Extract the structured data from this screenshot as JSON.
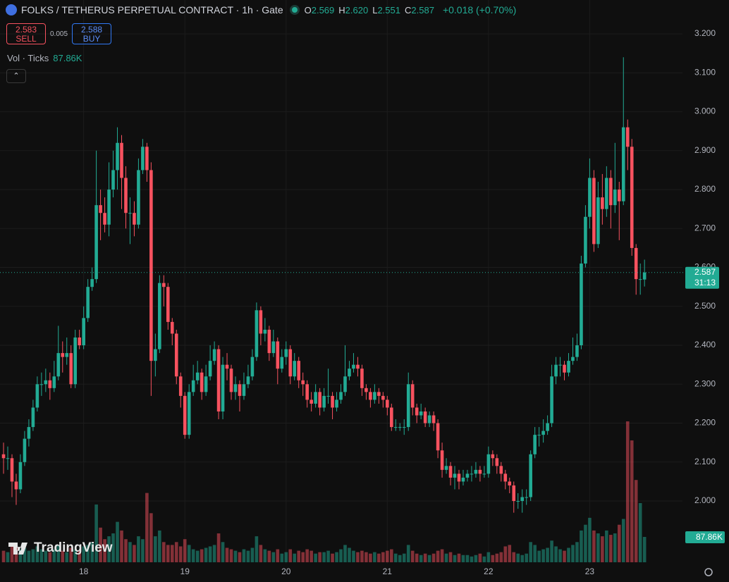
{
  "chart_data": {
    "type": "candlestick",
    "title": "FOLKS / TETHERUS PERPETUAL CONTRACT · 1h · Gate",
    "ohlc_header": [
      {
        "label": "O",
        "value": "2.569"
      },
      {
        "label": "H",
        "value": "2.620"
      },
      {
        "label": "L",
        "value": "2.551"
      },
      {
        "label": "C",
        "value": "2.587"
      }
    ],
    "change": "+0.018 (+0.70%)",
    "sell": {
      "price": "2.583",
      "label": "SELL"
    },
    "spread": "0.005",
    "buy": {
      "price": "2.588",
      "label": "BUY"
    },
    "volume_title": "Vol · Ticks",
    "volume_last_label": "87.86K",
    "last_price_label": "2.587",
    "countdown": "31:13",
    "logo": "TradingView",
    "up_color": "#22ab94",
    "down_color": "#f7525f",
    "grid": true,
    "ylim": [
      1.839,
      3.287
    ],
    "yticks": [
      {
        "value": 2,
        "label": "2.000"
      },
      {
        "value": 2.1,
        "label": "2.100"
      },
      {
        "value": 2.2,
        "label": "2.200"
      },
      {
        "value": 2.3,
        "label": "2.300"
      },
      {
        "value": 2.4,
        "label": "2.400"
      },
      {
        "value": 2.5,
        "label": "2.500"
      },
      {
        "value": 2.6,
        "label": "2.600"
      },
      {
        "value": 2.7,
        "label": "2.700"
      },
      {
        "value": 2.8,
        "label": "2.800"
      },
      {
        "value": 2.9,
        "label": "2.900"
      },
      {
        "value": 3,
        "label": "3.000"
      },
      {
        "value": 3.1,
        "label": "3.100"
      },
      {
        "value": 3.2,
        "label": "3.200"
      }
    ],
    "xlim": [
      -0.84,
      161
    ],
    "xticks": [
      {
        "value": 19,
        "label": "18"
      },
      {
        "value": 43,
        "label": "19"
      },
      {
        "value": 67,
        "label": "20"
      },
      {
        "value": 91,
        "label": "21"
      },
      {
        "value": 115,
        "label": "22"
      },
      {
        "value": 139,
        "label": "23"
      }
    ],
    "open": [
      2.12,
      2.11,
      2.11,
      2.05,
      2.03,
      2.1,
      2.16,
      2.19,
      2.24,
      2.3,
      2.3,
      2.31,
      2.29,
      2.32,
      2.38,
      2.37,
      2.38,
      2.3,
      2.42,
      2.4,
      2.47,
      2.55,
      2.57,
      2.76,
      2.74,
      2.71,
      2.8,
      2.85,
      2.92,
      2.83,
      2.74,
      2.74,
      2.71,
      2.85,
      2.91,
      2.85,
      2.36,
      2.39,
      2.56,
      2.55,
      2.46,
      2.43,
      2.32,
      2.27,
      2.17,
      2.28,
      2.31,
      2.33,
      2.28,
      2.32,
      2.36,
      2.39,
      2.23,
      2.35,
      2.34,
      2.28,
      2.3,
      2.27,
      2.3,
      2.32,
      2.37,
      2.49,
      2.43,
      2.44,
      2.38,
      2.41,
      2.34,
      2.37,
      2.39,
      2.32,
      2.36,
      2.31,
      2.3,
      2.26,
      2.25,
      2.28,
      2.24,
      2.27,
      2.27,
      2.24,
      2.26,
      2.28,
      2.32,
      2.34,
      2.35,
      2.34,
      2.29,
      2.28,
      2.26,
      2.28,
      2.27,
      2.26,
      2.24,
      2.19,
      2.19,
      2.19,
      2.19,
      2.3,
      2.24,
      2.22,
      2.23,
      2.2,
      2.22,
      2.2,
      2.13,
      2.08,
      2.09,
      2.06,
      2.07,
      2.05,
      2.06,
      2.07,
      2.07,
      2.08,
      2.07,
      2.07,
      2.12,
      2.11,
      2.09,
      2.07,
      2.05,
      2.04,
      2.0,
      2.0,
      2.01,
      2.01,
      2.12,
      2.17,
      2.17,
      2.18,
      2.2,
      2.32,
      2.35,
      2.35,
      2.33,
      2.36,
      2.37,
      2.4,
      2.61,
      2.73,
      2.83,
      2.66,
      2.78,
      2.75,
      2.83,
      2.76,
      2.8,
      2.77,
      2.96,
      2.91,
      2.65,
      2.57,
      2.569
    ],
    "high": [
      2.15,
      2.14,
      2.12,
      2.07,
      2.12,
      2.18,
      2.21,
      2.26,
      2.32,
      2.33,
      2.34,
      2.33,
      2.36,
      2.45,
      2.41,
      2.42,
      2.4,
      2.44,
      2.44,
      2.5,
      2.57,
      2.6,
      2.9,
      2.8,
      2.78,
      2.87,
      2.9,
      2.96,
      2.94,
      2.86,
      2.78,
      2.77,
      2.88,
      2.93,
      2.92,
      2.87,
      2.43,
      2.58,
      2.58,
      2.56,
      2.47,
      2.44,
      2.33,
      2.28,
      2.3,
      2.35,
      2.36,
      2.34,
      2.35,
      2.4,
      2.41,
      2.4,
      2.37,
      2.38,
      2.35,
      2.32,
      2.31,
      2.33,
      2.35,
      2.39,
      2.51,
      2.5,
      2.47,
      2.45,
      2.44,
      2.42,
      2.39,
      2.41,
      2.4,
      2.38,
      2.37,
      2.33,
      2.31,
      2.28,
      2.3,
      2.29,
      2.29,
      2.34,
      2.28,
      2.28,
      2.3,
      2.4,
      2.36,
      2.38,
      2.37,
      2.35,
      2.3,
      2.29,
      2.3,
      2.29,
      2.28,
      2.27,
      2.25,
      2.21,
      2.2,
      2.21,
      2.33,
      2.31,
      2.25,
      2.25,
      2.24,
      2.23,
      2.23,
      2.21,
      2.15,
      2.11,
      2.1,
      2.09,
      2.08,
      2.08,
      2.08,
      2.09,
      2.1,
      2.09,
      2.09,
      2.14,
      2.13,
      2.12,
      2.1,
      2.08,
      2.06,
      2.05,
      2.02,
      2.03,
      2.03,
      2.13,
      2.19,
      2.19,
      2.21,
      2.22,
      2.35,
      2.37,
      2.37,
      2.36,
      2.38,
      2.42,
      2.43,
      2.63,
      2.76,
      2.88,
      2.85,
      2.82,
      2.84,
      2.86,
      2.85,
      2.92,
      2.82,
      3.14,
      2.98,
      2.93,
      2.66,
      2.61,
      2.62
    ],
    "low": [
      2.07,
      2.08,
      2.01,
      1.99,
      2.02,
      2.09,
      2.14,
      2.18,
      2.23,
      2.27,
      2.28,
      2.26,
      2.28,
      2.31,
      2.33,
      2.35,
      2.29,
      2.29,
      2.39,
      2.39,
      2.46,
      2.54,
      2.56,
      2.67,
      2.69,
      2.68,
      2.78,
      2.8,
      2.75,
      2.7,
      2.66,
      2.68,
      2.7,
      2.84,
      2.82,
      2.27,
      2.32,
      2.38,
      2.5,
      2.44,
      2.4,
      2.3,
      2.24,
      2.16,
      2.16,
      2.27,
      2.3,
      2.26,
      2.27,
      2.31,
      2.35,
      2.21,
      2.21,
      2.31,
      2.26,
      2.26,
      2.23,
      2.26,
      2.29,
      2.31,
      2.36,
      2.4,
      2.41,
      2.36,
      2.37,
      2.3,
      2.33,
      2.35,
      2.3,
      2.31,
      2.29,
      2.27,
      2.24,
      2.23,
      2.24,
      2.22,
      2.23,
      2.25,
      2.21,
      2.23,
      2.25,
      2.27,
      2.31,
      2.33,
      2.32,
      2.27,
      2.26,
      2.24,
      2.25,
      2.25,
      2.24,
      2.22,
      2.18,
      2.18,
      2.18,
      2.17,
      2.18,
      2.22,
      2.2,
      2.21,
      2.19,
      2.19,
      2.18,
      2.11,
      2.06,
      2.07,
      2.04,
      2.03,
      2.03,
      2.04,
      2.05,
      2.05,
      2.06,
      2.05,
      2.06,
      2.06,
      2.09,
      2.07,
      2.05,
      2.03,
      2.02,
      1.97,
      1.98,
      1.97,
      1.99,
      2.0,
      2.11,
      2.14,
      2.15,
      2.17,
      2.19,
      2.3,
      2.32,
      2.31,
      2.32,
      2.35,
      2.36,
      2.39,
      2.6,
      2.7,
      2.64,
      2.65,
      2.71,
      2.73,
      2.7,
      2.74,
      2.67,
      2.76,
      2.85,
      2.63,
      2.53,
      2.53,
      2.551
    ],
    "close": [
      2.11,
      2.11,
      2.05,
      2.03,
      2.1,
      2.16,
      2.19,
      2.24,
      2.3,
      2.3,
      2.31,
      2.29,
      2.32,
      2.38,
      2.37,
      2.38,
      2.3,
      2.42,
      2.4,
      2.47,
      2.55,
      2.57,
      2.76,
      2.74,
      2.71,
      2.8,
      2.85,
      2.92,
      2.83,
      2.74,
      2.74,
      2.71,
      2.85,
      2.91,
      2.85,
      2.36,
      2.39,
      2.56,
      2.55,
      2.46,
      2.43,
      2.32,
      2.27,
      2.17,
      2.28,
      2.31,
      2.33,
      2.28,
      2.32,
      2.36,
      2.39,
      2.23,
      2.35,
      2.34,
      2.28,
      2.3,
      2.27,
      2.3,
      2.32,
      2.37,
      2.49,
      2.43,
      2.44,
      2.38,
      2.41,
      2.34,
      2.37,
      2.39,
      2.32,
      2.36,
      2.31,
      2.3,
      2.26,
      2.25,
      2.28,
      2.24,
      2.27,
      2.27,
      2.24,
      2.26,
      2.28,
      2.32,
      2.34,
      2.35,
      2.34,
      2.29,
      2.28,
      2.26,
      2.28,
      2.27,
      2.26,
      2.24,
      2.19,
      2.19,
      2.19,
      2.19,
      2.3,
      2.24,
      2.22,
      2.23,
      2.2,
      2.22,
      2.2,
      2.13,
      2.08,
      2.09,
      2.06,
      2.07,
      2.05,
      2.06,
      2.07,
      2.07,
      2.08,
      2.07,
      2.07,
      2.12,
      2.11,
      2.09,
      2.07,
      2.05,
      2.04,
      2.0,
      2.0,
      2.01,
      2.01,
      2.12,
      2.17,
      2.17,
      2.18,
      2.2,
      2.32,
      2.35,
      2.35,
      2.33,
      2.36,
      2.37,
      2.4,
      2.61,
      2.73,
      2.83,
      2.66,
      2.78,
      2.75,
      2.83,
      2.76,
      2.8,
      2.77,
      2.96,
      2.91,
      2.65,
      2.57,
      2.57,
      2.587
    ],
    "volume": [
      40000,
      35000,
      60000,
      55000,
      45000,
      50000,
      40000,
      45000,
      55000,
      45000,
      40000,
      35000,
      45000,
      60000,
      40000,
      35000,
      50000,
      45000,
      40000,
      55000,
      60000,
      70000,
      200000,
      120000,
      80000,
      90000,
      100000,
      140000,
      110000,
      80000,
      70000,
      60000,
      90000,
      80000,
      240000,
      170000,
      90000,
      110000,
      70000,
      60000,
      60000,
      70000,
      55000,
      80000,
      60000,
      45000,
      40000,
      45000,
      50000,
      55000,
      60000,
      100000,
      70000,
      50000,
      45000,
      40000,
      35000,
      45000,
      40000,
      50000,
      90000,
      60000,
      45000,
      40000,
      35000,
      45000,
      30000,
      35000,
      45000,
      30000,
      40000,
      35000,
      45000,
      40000,
      30000,
      35000,
      35000,
      40000,
      30000,
      35000,
      45000,
      60000,
      50000,
      40000,
      35000,
      40000,
      35000,
      30000,
      35000,
      30000,
      35000,
      40000,
      45000,
      30000,
      25000,
      30000,
      60000,
      40000,
      30000,
      25000,
      30000,
      25000,
      30000,
      40000,
      45000,
      30000,
      35000,
      25000,
      30000,
      25000,
      25000,
      20000,
      25000,
      30000,
      20000,
      35000,
      25000,
      30000,
      35000,
      55000,
      60000,
      35000,
      30000,
      25000,
      30000,
      70000,
      60000,
      40000,
      45000,
      50000,
      75000,
      55000,
      45000,
      40000,
      50000,
      60000,
      70000,
      110000,
      130000,
      154000,
      110000,
      100000,
      90000,
      110000,
      95000,
      100000,
      130000,
      150000,
      488000,
      422000,
      285000,
      205000,
      87860
    ]
  }
}
